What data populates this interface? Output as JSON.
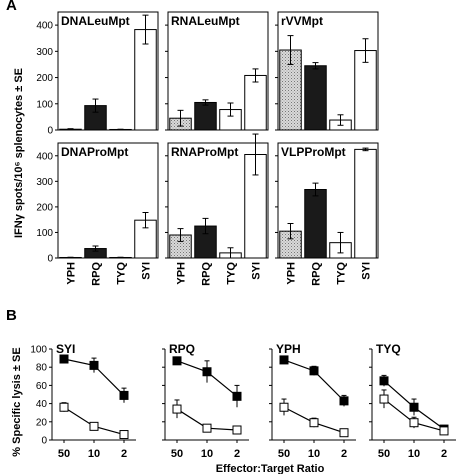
{
  "panel_labels": {
    "a": "A",
    "b": "B"
  },
  "colors": {
    "YPH": "#c8c8c8",
    "RPQ": "#1a1a1a",
    "TYQ": "#ffffff",
    "SYI": "#ffffff",
    "filled_marker": "#000000",
    "open_marker": "#ffffff"
  },
  "chart_data": [
    {
      "type": "bar",
      "ylabel": "IFNγ spots/10⁶ splenocytes ± SE",
      "ylim": [
        0,
        450
      ],
      "yticks": [
        0,
        100,
        200,
        300,
        400
      ],
      "categories": [
        "YPH",
        "RPQ",
        "TYQ",
        "SYI"
      ],
      "grid": false,
      "panels": [
        {
          "title": "DNALeuMpt",
          "values": [
            3,
            93,
            2,
            383
          ],
          "errors": [
            2,
            25,
            1,
            55
          ]
        },
        {
          "title": "RNALeuMpt",
          "values": [
            45,
            105,
            78,
            208
          ],
          "errors": [
            30,
            10,
            25,
            25
          ]
        },
        {
          "title": "rVVMpt",
          "values": [
            305,
            245,
            38,
            303
          ],
          "errors": [
            55,
            12,
            20,
            45
          ]
        },
        {
          "title": "DNAProMpt",
          "values": [
            2,
            37,
            2,
            148
          ],
          "errors": [
            1,
            10,
            1,
            30
          ]
        },
        {
          "title": "RNAProMpt",
          "values": [
            90,
            125,
            20,
            405
          ],
          "errors": [
            25,
            30,
            20,
            80
          ]
        },
        {
          "title": "VLPProMpt",
          "values": [
            105,
            268,
            60,
            425
          ],
          "errors": [
            30,
            25,
            40,
            5
          ]
        }
      ]
    },
    {
      "type": "line",
      "ylabel": "% Specific lysis ± SE",
      "xlabel": "Effector:Target Ratio",
      "ylim": [
        0,
        100
      ],
      "yticks": [
        0,
        20,
        40,
        60,
        80,
        100
      ],
      "x": [
        "50",
        "10",
        "2"
      ],
      "grid": false,
      "panels": [
        {
          "title": "SYI",
          "series": [
            {
              "marker": "filled-square",
              "values": [
                89,
                82,
                49
              ],
              "errors": [
                3,
                8,
                8
              ]
            },
            {
              "marker": "open-square",
              "values": [
                36,
                15,
                6
              ],
              "errors": [
                5,
                3,
                2
              ]
            }
          ]
        },
        {
          "title": "RPQ",
          "series": [
            {
              "marker": "filled-square",
              "values": [
                87,
                75,
                48
              ],
              "errors": [
                3,
                12,
                12
              ]
            },
            {
              "marker": "open-square",
              "values": [
                34,
                13,
                11
              ],
              "errors": [
                10,
                4,
                3
              ]
            }
          ]
        },
        {
          "title": "YPH",
          "series": [
            {
              "marker": "filled-square",
              "values": [
                88,
                76,
                43
              ],
              "errors": [
                2,
                5,
                6
              ]
            },
            {
              "marker": "open-square",
              "values": [
                36,
                19,
                8
              ],
              "errors": [
                9,
                5,
                2
              ]
            }
          ]
        },
        {
          "title": "TYQ",
          "series": [
            {
              "marker": "filled-square",
              "values": [
                65,
                36,
                12
              ],
              "errors": [
                6,
                9,
                2
              ]
            },
            {
              "marker": "open-square",
              "values": [
                45,
                19,
                10
              ],
              "errors": [
                10,
                6,
                2
              ]
            }
          ]
        }
      ]
    }
  ]
}
